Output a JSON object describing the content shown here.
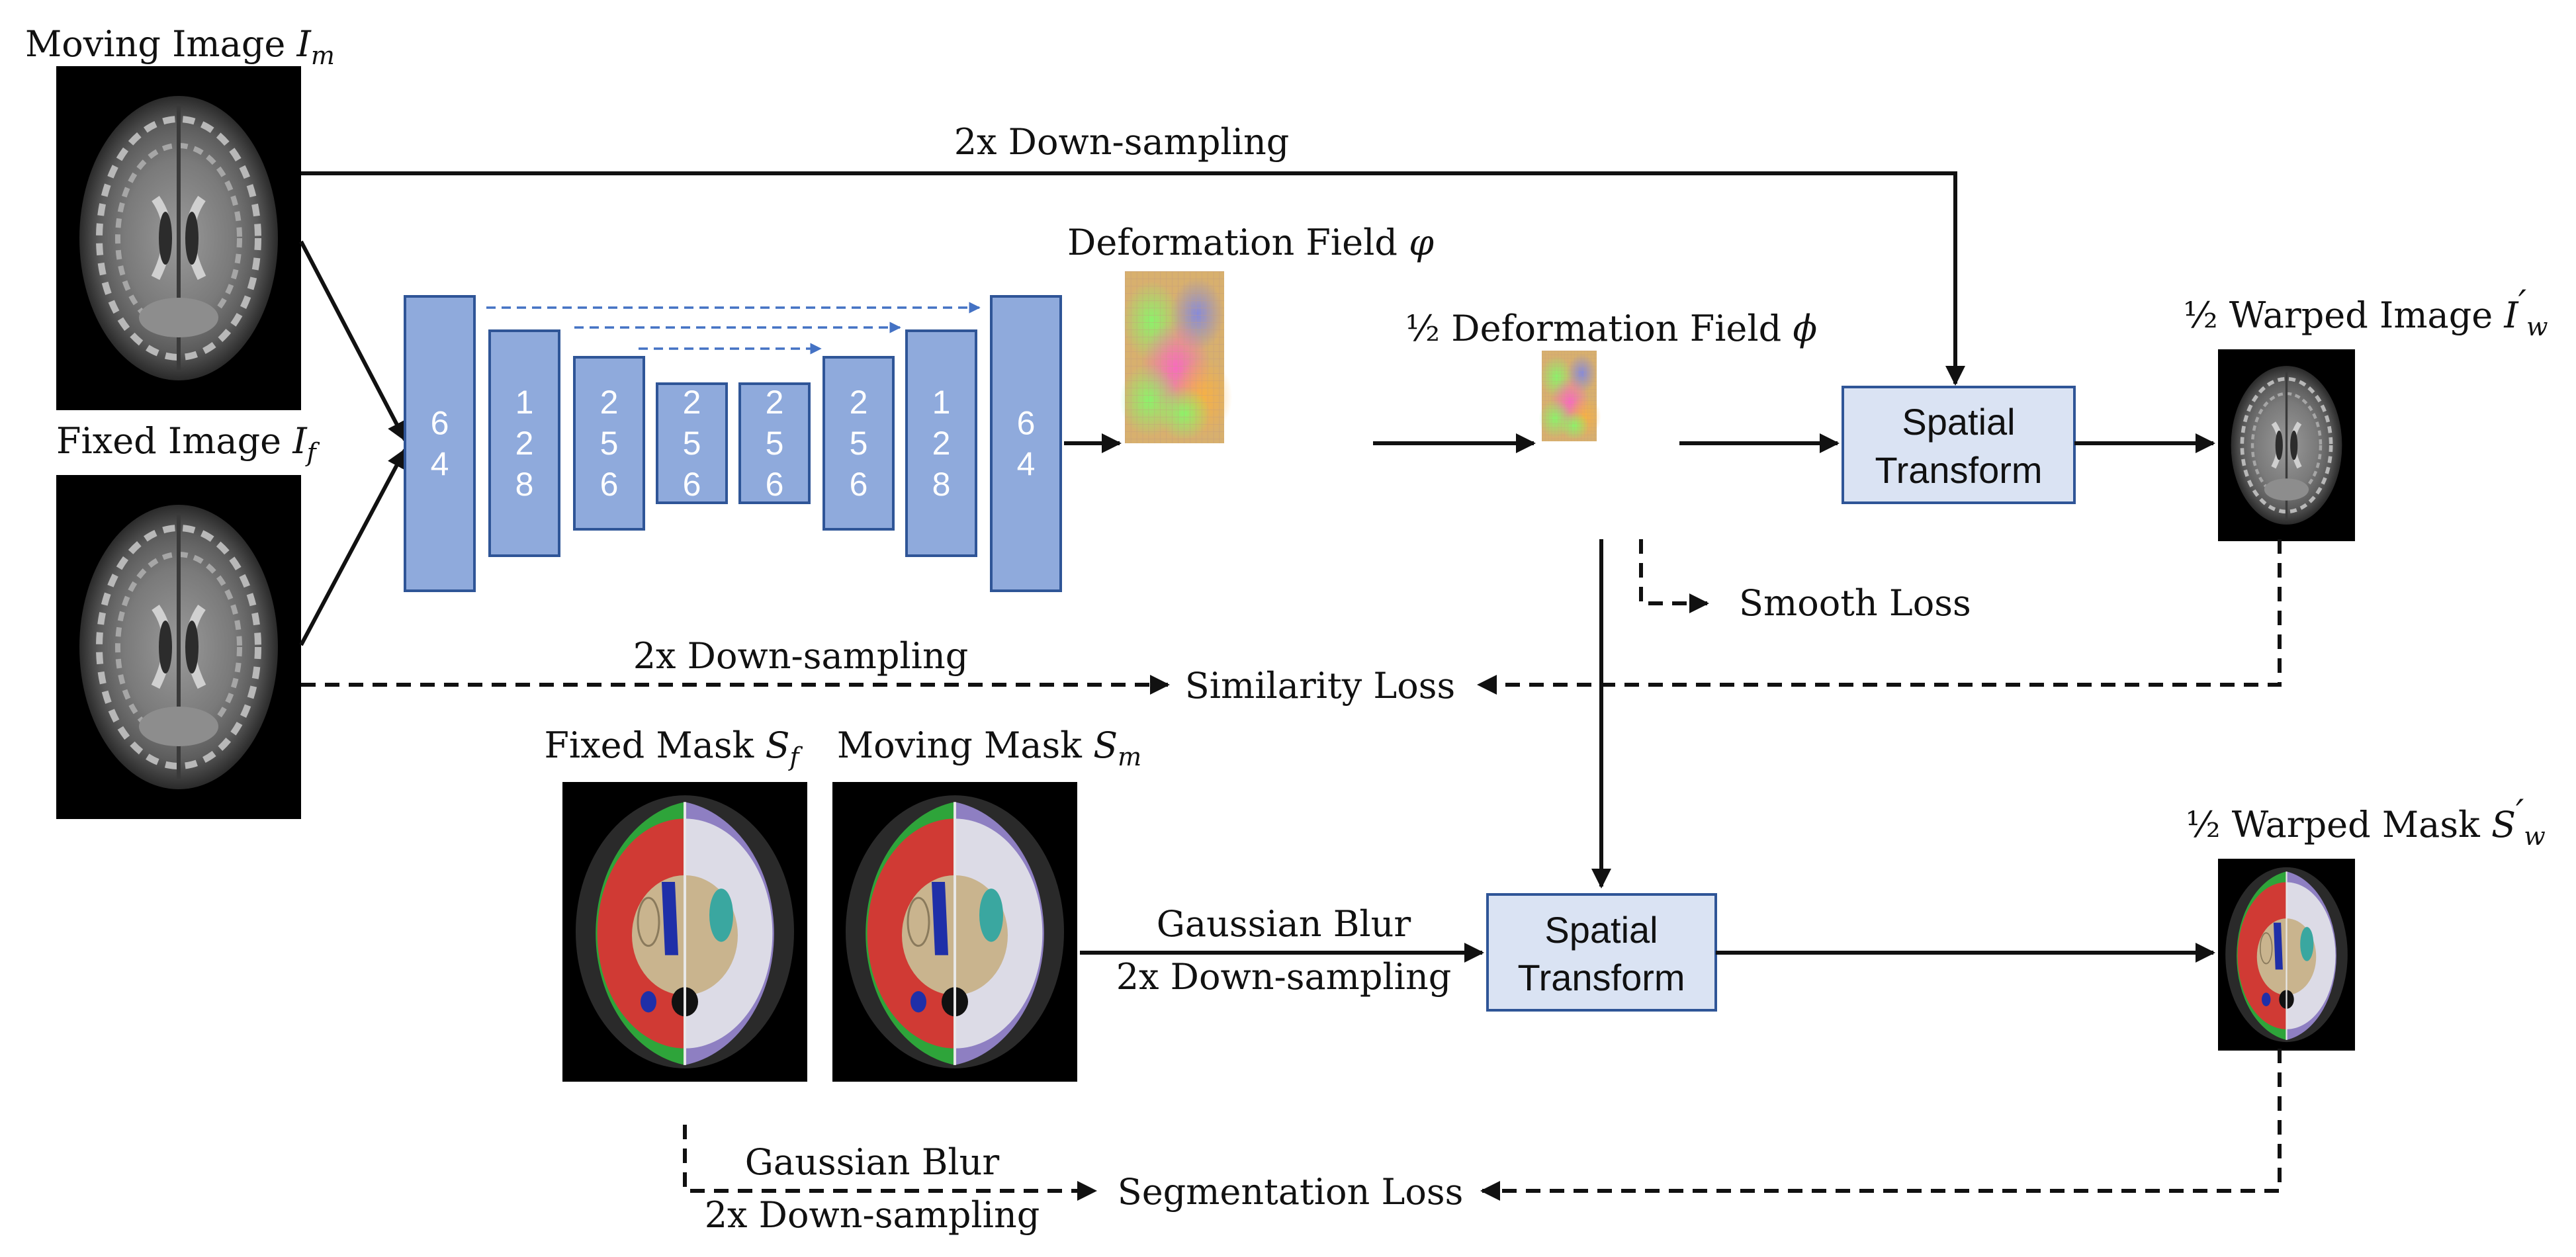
{
  "inputs": {
    "moving_image": {
      "text": "Moving Image ",
      "symbol": "I",
      "sub": "m"
    },
    "fixed_image": {
      "text": "Fixed Image ",
      "symbol": "I",
      "sub": "f"
    }
  },
  "unet": {
    "blocks": [
      {
        "digits": [
          "6",
          "4"
        ]
      },
      {
        "digits": [
          "1",
          "2",
          "8"
        ]
      },
      {
        "digits": [
          "2",
          "5",
          "6"
        ]
      },
      {
        "digits": [
          "2",
          "5",
          "6"
        ]
      },
      {
        "digits": [
          "2",
          "5",
          "6"
        ]
      },
      {
        "digits": [
          "2",
          "5",
          "6"
        ]
      },
      {
        "digits": [
          "1",
          "2",
          "8"
        ]
      },
      {
        "digits": [
          "6",
          "4"
        ]
      }
    ],
    "fill_color": "#8faadc",
    "stroke_color": "#2f5597",
    "skip_color": "#4472c4"
  },
  "labels": {
    "downsample_top": "2x Down-sampling",
    "deformation_field": {
      "text": "Deformation Field ",
      "symbol": "φ"
    },
    "half_deformation_field": {
      "text": "½ Deformation Field ",
      "symbol": "ϕ"
    },
    "warped_image": {
      "text": "½ Warped Image ",
      "symbol": "I",
      "sub": "w",
      "prime": "′"
    },
    "smooth_loss": "Smooth Loss",
    "downsample_mid": "2x Down-sampling",
    "similarity_loss": "Similarity Loss",
    "fixed_mask": {
      "text": "Fixed Mask ",
      "symbol": "S",
      "sub": "f"
    },
    "moving_mask": {
      "text": "Moving Mask ",
      "symbol": "S",
      "sub": "m"
    },
    "warped_mask": {
      "text": "½ Warped Mask ",
      "symbol": "S",
      "sub": "w",
      "prime": "′"
    },
    "gaussian_blur_mid": "Gaussian Blur",
    "downsample_mask_mid": "2x Down-sampling",
    "gaussian_blur_bottom": "Gaussian Blur",
    "downsample_bottom": "2x Down-sampling",
    "segmentation_loss": "Segmentation Loss"
  },
  "spatial_transform": {
    "line1": "Spatial",
    "line2": "Transform",
    "fill_color": "#dae3f3",
    "stroke_color": "#2f5597"
  },
  "mask_colors": {
    "cortex": "#2ea43a",
    "white_matter": "#d03a34",
    "right_cortex": "#8e7fc2",
    "right_white": "#dcdbe6",
    "ventricle": "#1f2fa8",
    "deep_gray": "#c9b48e",
    "putamen": "#3aa7a0"
  }
}
